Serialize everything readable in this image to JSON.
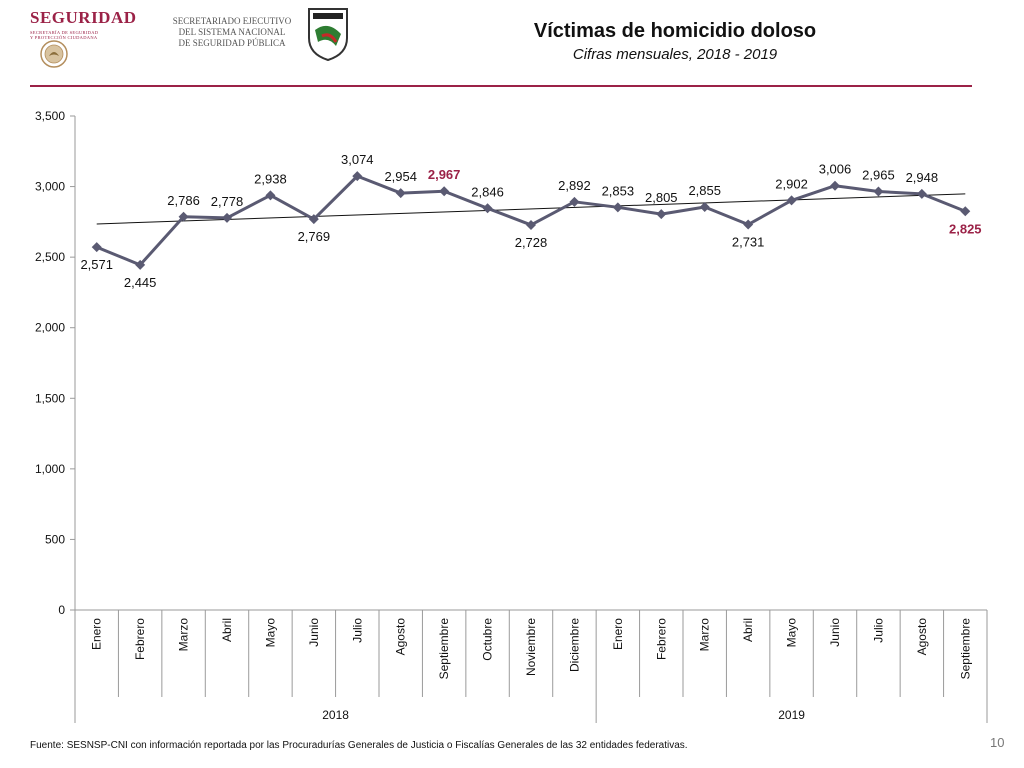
{
  "header": {
    "brand": "SEGURIDAD",
    "brand_sub_line1": "SECRETARÍA DE SEGURIDAD",
    "brand_sub_line2": "Y PROTECCIÓN CIUDADANA",
    "secretariat_line1": "SECRETARIADO EJECUTIVO",
    "secretariat_line2": "DEL SISTEMA NACIONAL",
    "secretariat_line3": "DE SEGURIDAD PÚBLICA",
    "title": "Víctimas de homicidio doloso",
    "subtitle": "Cifras mensuales, 2018 - 2019",
    "rule_color": "#9b2247",
    "brand_color": "#9b2247"
  },
  "chart_data": {
    "type": "line",
    "categories": [
      "Enero",
      "Febrero",
      "Marzo",
      "Abril",
      "Mayo",
      "Junio",
      "Julio",
      "Agosto",
      "Septiembre",
      "Octubre",
      "Noviembre",
      "Diciembre",
      "Enero",
      "Febrero",
      "Marzo",
      "Abril",
      "Mayo",
      "Junio",
      "Julio",
      "Agosto",
      "Septiembre"
    ],
    "groups": [
      {
        "label": "2018",
        "count": 12
      },
      {
        "label": "2019",
        "count": 9
      }
    ],
    "series": [
      {
        "values": [
          2571,
          2445,
          2786,
          2778,
          2938,
          2769,
          3074,
          2954,
          2967,
          2846,
          2728,
          2892,
          2853,
          2805,
          2855,
          2731,
          2902,
          3006,
          2965,
          2948,
          2825
        ],
        "color": "#5a5a72"
      }
    ],
    "data_labels": [
      "2,571",
      "2,445",
      "2,786",
      "2,778",
      "2,938",
      "2,769",
      "3,074",
      "2,954",
      "2,967",
      "2,846",
      "2,728",
      "2,892",
      "2,853",
      "2,805",
      "2,855",
      "2,731",
      "2,902",
      "3,006",
      "2,965",
      "2,948",
      "2,825"
    ],
    "highlighted_indices": [
      8,
      20
    ],
    "highlight_color": "#9b2247",
    "label_side": [
      "below",
      "below",
      "above",
      "above",
      "above",
      "below",
      "above",
      "above",
      "above",
      "above",
      "below",
      "above",
      "above",
      "above",
      "above",
      "below",
      "above",
      "above",
      "above",
      "above",
      "below"
    ],
    "trendline": {
      "start": 2735,
      "end": 2948,
      "color": "#111111"
    },
    "ylim": [
      0,
      3500
    ],
    "yticks": [
      0,
      500,
      1000,
      1500,
      2000,
      2500,
      3000,
      3500
    ],
    "ytick_labels": [
      "0",
      "500",
      "1,000",
      "1,500",
      "2,000",
      "2,500",
      "3,000",
      "3,500"
    ],
    "grid": false,
    "legend": "none"
  },
  "footer": {
    "source": "Fuente: SESNSP-CNI con información reportada por las Procuradurías Generales de Justicia o Fiscalías Generales de las 32 entidades federativas.",
    "page_number": "10"
  }
}
